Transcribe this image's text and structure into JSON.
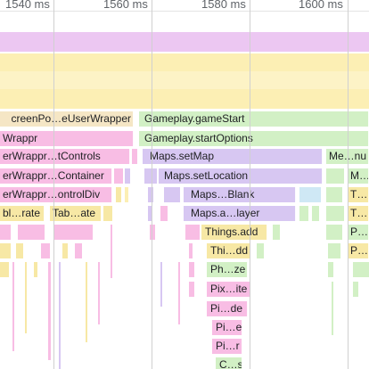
{
  "ruler": {
    "ticks": [
      "1540 ms",
      "1560 ms",
      "1580 ms",
      "1600 ms"
    ]
  },
  "colors": {
    "purple_track": "#ecc7f2",
    "yellow_track": "#fcefb4",
    "yellow_light": "#fdf3c6",
    "pink": "#f8bde4",
    "tan": "#f5e6c5",
    "green": "#d2f0c5",
    "lavender": "#d7c7f2",
    "yellow": "#f7e8a5"
  },
  "frames": {
    "row0": [
      "creenPo…eUserWrapper",
      "Gameplay.gameStart"
    ],
    "row1": [
      "Wrappr",
      "Gameplay.startOptions"
    ],
    "row2": [
      "erWrappr…tControls",
      "Maps.setMap",
      "Me…nu"
    ],
    "row3": [
      "erWrappr…Container",
      "Maps.setLocation",
      "M…"
    ],
    "row4": [
      "erWrappr…ontrolDiv",
      "Maps…Blank",
      "T…"
    ],
    "row5": [
      "bl…rate",
      "Tab…ate",
      "Maps.a…layer",
      "T…"
    ],
    "row6": [
      "Things.add",
      "P…"
    ],
    "row7": [
      "Thi…dd",
      "P…"
    ],
    "row8": [
      "Ph…ze"
    ],
    "row9": [
      "Pix…ite"
    ],
    "row10": [
      "Pi…de"
    ],
    "row11": [
      "Pi…e"
    ],
    "row12": [
      "Pi…r"
    ],
    "row13": [
      "C…s"
    ]
  }
}
